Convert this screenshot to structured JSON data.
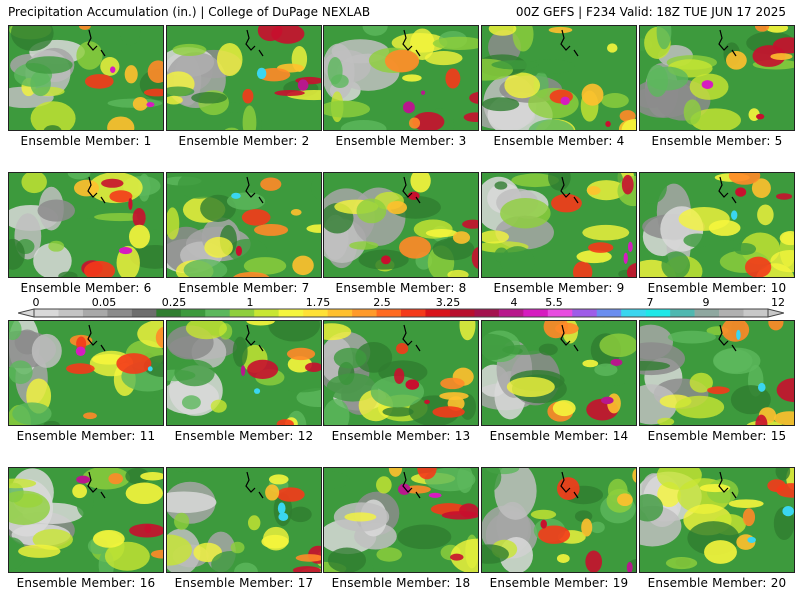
{
  "header": {
    "title_left": "Precipitation Accumulation (in.) | College of DuPage NEXLAB",
    "title_right": "00Z GEFS | F234 Valid: 18Z TUE JUN 17 2025"
  },
  "panels": [
    {
      "label": "Ensemble Member: 1",
      "seed": 11
    },
    {
      "label": "Ensemble Member: 2",
      "seed": 23
    },
    {
      "label": "Ensemble Member: 3",
      "seed": 37
    },
    {
      "label": "Ensemble Member: 4",
      "seed": 41
    },
    {
      "label": "Ensemble Member: 5",
      "seed": 59
    },
    {
      "label": "Ensemble Member: 6",
      "seed": 67
    },
    {
      "label": "Ensemble Member: 7",
      "seed": 73
    },
    {
      "label": "Ensemble Member: 8",
      "seed": 89
    },
    {
      "label": "Ensemble Member: 9",
      "seed": 97
    },
    {
      "label": "Ensemble Member: 10",
      "seed": 103
    },
    {
      "label": "Ensemble Member: 11",
      "seed": 113
    },
    {
      "label": "Ensemble Member: 12",
      "seed": 127
    },
    {
      "label": "Ensemble Member: 13",
      "seed": 131
    },
    {
      "label": "Ensemble Member: 14",
      "seed": 149
    },
    {
      "label": "Ensemble Member: 15",
      "seed": 157
    },
    {
      "label": "Ensemble Member: 16",
      "seed": 163
    },
    {
      "label": "Ensemble Member: 17",
      "seed": 173
    },
    {
      "label": "Ensemble Member: 18",
      "seed": 181
    },
    {
      "label": "Ensemble Member: 19",
      "seed": 191
    },
    {
      "label": "Ensemble Member: 20",
      "seed": 199
    }
  ],
  "colorbar": {
    "tick_labels": [
      "0",
      "0.05",
      "0.25",
      "1",
      "1.75",
      "2.5",
      "3.25",
      "4",
      "5.5",
      "7",
      "9",
      "12"
    ],
    "colors": [
      "#d9d9d9",
      "#c4c4c4",
      "#a9a9a9",
      "#8c8c8c",
      "#6e6e6e",
      "#2f7d2f",
      "#3d9a3d",
      "#5cb85c",
      "#8fcf3c",
      "#c8e632",
      "#f5f53c",
      "#ffe135",
      "#ffc02e",
      "#ff9a2a",
      "#ff6a20",
      "#f43a1a",
      "#d8141a",
      "#b80f2e",
      "#a3124e",
      "#b8188c",
      "#d61cc0",
      "#e84de0",
      "#9e5de8",
      "#6a8ef0",
      "#3ad6f0",
      "#1ee8e8",
      "#4fb8b0",
      "#8fa8a0",
      "#b0b0b0",
      "#c8c8c8"
    ]
  }
}
